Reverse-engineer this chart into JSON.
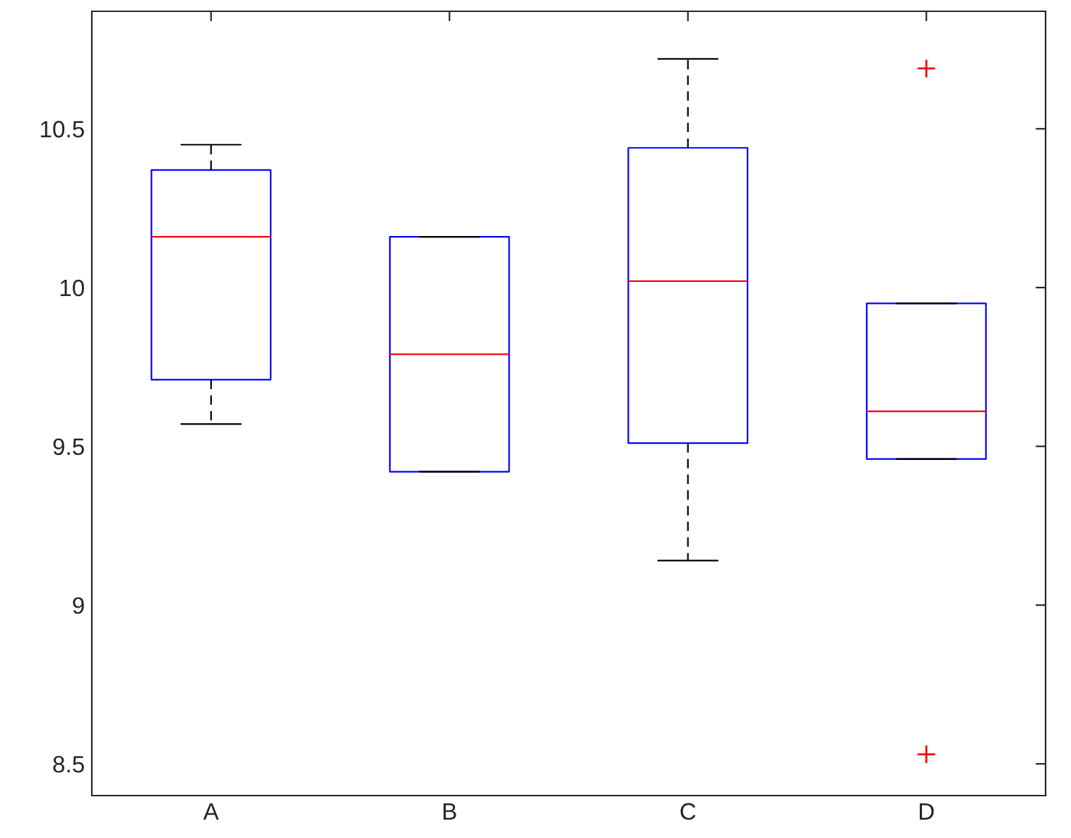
{
  "chart_data": {
    "type": "box",
    "categories": [
      "A",
      "B",
      "C",
      "D"
    ],
    "series": [
      {
        "color": "#0000ff",
        "boxes": [
          {
            "low": 9.57,
            "q1": 9.71,
            "median": 10.16,
            "q3": 10.37,
            "high": 10.45
          },
          {
            "low": 9.42,
            "q1": 9.42,
            "median": 9.79,
            "q3": 10.16,
            "high": 10.16
          },
          {
            "low": 9.14,
            "q1": 9.51,
            "median": 10.02,
            "q3": 10.44,
            "high": 10.72
          },
          {
            "low": 9.46,
            "q1": 9.46,
            "median": 9.61,
            "q3": 9.95,
            "high": 9.95,
            "outliers": [
              10.69,
              8.53
            ]
          }
        ]
      }
    ],
    "ylim": [
      8.4,
      10.87
    ],
    "yticks": [
      8.5,
      9,
      9.5,
      10,
      10.5
    ],
    "grid": false
  }
}
